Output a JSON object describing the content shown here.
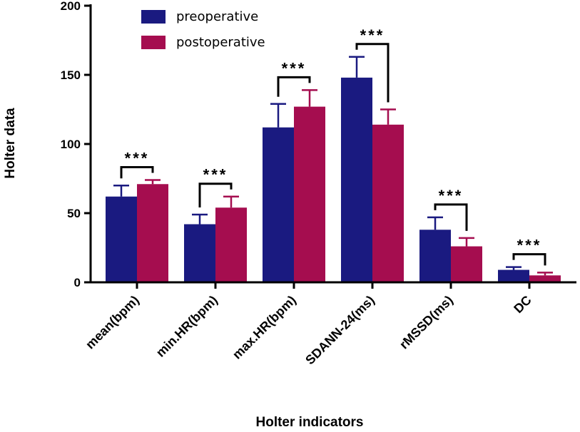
{
  "chart_data": {
    "type": "bar",
    "title": "",
    "xlabel": "Holter indicators",
    "ylabel": "Holter data",
    "ylim": [
      0,
      200
    ],
    "yticks": [
      0,
      50,
      100,
      150,
      200
    ],
    "categories": [
      "mean(bpm)",
      "min.HR(bpm)",
      "max.HR(bpm)",
      "SDANN-24(ms)",
      "rMSSD(ms)",
      "DC"
    ],
    "series": [
      {
        "name": "preoperative",
        "color": "#1a1a80",
        "values": [
          62,
          42,
          112,
          148,
          38,
          9
        ],
        "errors": [
          8,
          7,
          17,
          15,
          9,
          2
        ]
      },
      {
        "name": "postoperative",
        "color": "#a50d4f",
        "values": [
          71,
          54,
          127,
          114,
          26,
          5
        ],
        "errors": [
          3,
          8,
          12,
          11,
          6,
          2
        ]
      }
    ],
    "significance": [
      "***",
      "***",
      "***",
      "***",
      "***",
      "***"
    ],
    "legend_position": "top-center",
    "grid": false
  }
}
